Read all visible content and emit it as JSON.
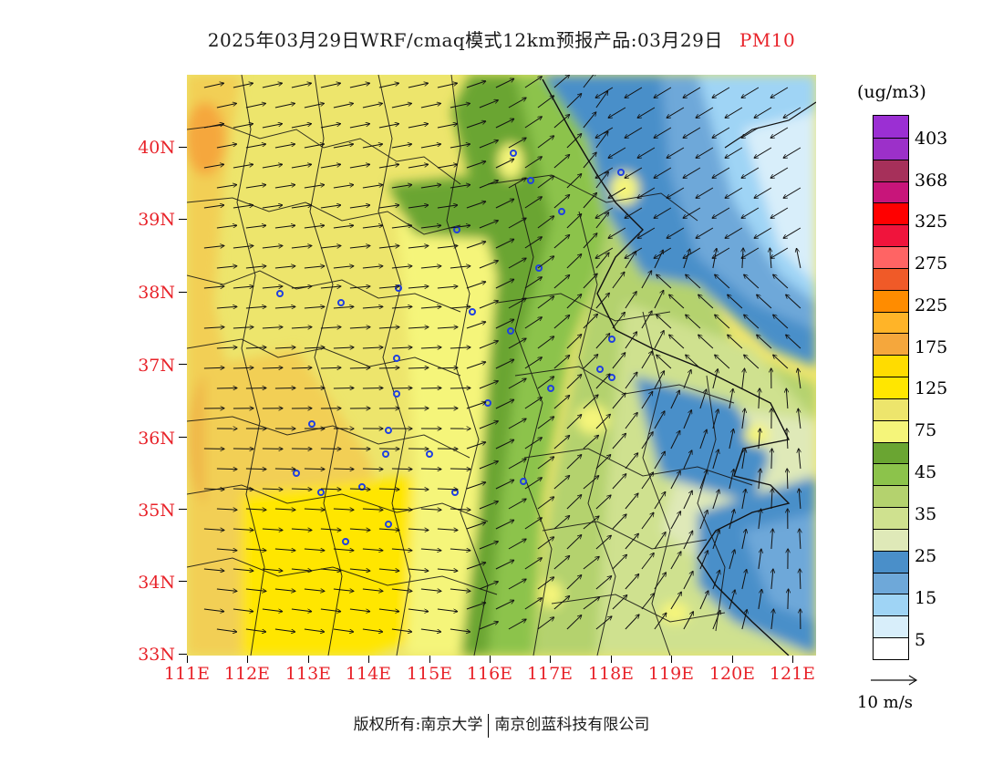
{
  "header": {
    "title_main": "2025年03月29日WRF/cmaq模式12km预报产品:03月29日",
    "title_var": "PM10"
  },
  "map": {
    "lat_labels": [
      "40N",
      "39N",
      "38N",
      "37N",
      "36N",
      "35N",
      "34N",
      "33N"
    ],
    "lon_labels": [
      "111E",
      "112E",
      "113E",
      "114E",
      "115E",
      "116E",
      "117E",
      "118E",
      "119E",
      "120E",
      "121E"
    ],
    "lat_min": 33,
    "lat_max": 41,
    "lon_min": 111,
    "lon_max": 121.4
  },
  "legend": {
    "unit": "(ug/m3)",
    "labels": [
      "403",
      "368",
      "325",
      "275",
      "225",
      "175",
      "125",
      "75",
      "45",
      "35",
      "25",
      "15",
      "5"
    ],
    "colors": [
      "#9b2fd3",
      "#9c30c9",
      "#a6305a",
      "#c8157a",
      "#ff0000",
      "#f0143c",
      "#ff6464",
      "#f05a28",
      "#ff8c00",
      "#ffb428",
      "#f5a73c",
      "#ffdc00",
      "#ffe600",
      "#ede56c",
      "#f5f57a",
      "#6aa532",
      "#8cc34b",
      "#b4d26e",
      "#cfe18f",
      "#dfe9b8",
      "#4a8fc9",
      "#6ea8d9",
      "#9fd4f5",
      "#d8eefa",
      "#ffffff"
    ],
    "vector_label": "10 m/s"
  },
  "footer": {
    "owner": "版权所有:南京大学",
    "company": "南京创蓝科技有限公司"
  }
}
